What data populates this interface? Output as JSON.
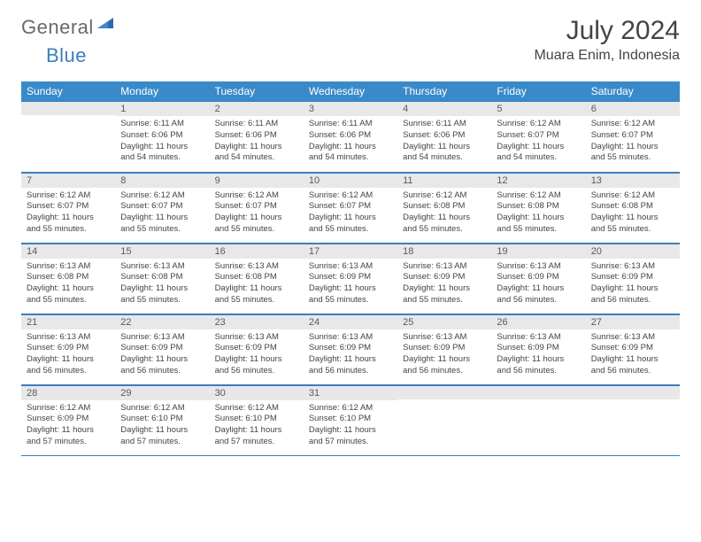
{
  "logo": {
    "text1": "General",
    "text2": "Blue"
  },
  "title": "July 2024",
  "location": "Muara Enim, Indonesia",
  "colors": {
    "header_bg": "#3a8ac9",
    "header_text": "#ffffff",
    "rule": "#3a7ebf",
    "daynum_bg": "#e8e8e8",
    "body_text": "#444444",
    "logo_gray": "#6a6a6a",
    "logo_blue": "#3a7ebf"
  },
  "weekdays": [
    "Sunday",
    "Monday",
    "Tuesday",
    "Wednesday",
    "Thursday",
    "Friday",
    "Saturday"
  ],
  "weeks": [
    [
      {
        "day": "",
        "sunrise": "",
        "sunset": "",
        "daylight": ""
      },
      {
        "day": "1",
        "sunrise": "Sunrise: 6:11 AM",
        "sunset": "Sunset: 6:06 PM",
        "daylight": "Daylight: 11 hours and 54 minutes."
      },
      {
        "day": "2",
        "sunrise": "Sunrise: 6:11 AM",
        "sunset": "Sunset: 6:06 PM",
        "daylight": "Daylight: 11 hours and 54 minutes."
      },
      {
        "day": "3",
        "sunrise": "Sunrise: 6:11 AM",
        "sunset": "Sunset: 6:06 PM",
        "daylight": "Daylight: 11 hours and 54 minutes."
      },
      {
        "day": "4",
        "sunrise": "Sunrise: 6:11 AM",
        "sunset": "Sunset: 6:06 PM",
        "daylight": "Daylight: 11 hours and 54 minutes."
      },
      {
        "day": "5",
        "sunrise": "Sunrise: 6:12 AM",
        "sunset": "Sunset: 6:07 PM",
        "daylight": "Daylight: 11 hours and 54 minutes."
      },
      {
        "day": "6",
        "sunrise": "Sunrise: 6:12 AM",
        "sunset": "Sunset: 6:07 PM",
        "daylight": "Daylight: 11 hours and 55 minutes."
      }
    ],
    [
      {
        "day": "7",
        "sunrise": "Sunrise: 6:12 AM",
        "sunset": "Sunset: 6:07 PM",
        "daylight": "Daylight: 11 hours and 55 minutes."
      },
      {
        "day": "8",
        "sunrise": "Sunrise: 6:12 AM",
        "sunset": "Sunset: 6:07 PM",
        "daylight": "Daylight: 11 hours and 55 minutes."
      },
      {
        "day": "9",
        "sunrise": "Sunrise: 6:12 AM",
        "sunset": "Sunset: 6:07 PM",
        "daylight": "Daylight: 11 hours and 55 minutes."
      },
      {
        "day": "10",
        "sunrise": "Sunrise: 6:12 AM",
        "sunset": "Sunset: 6:07 PM",
        "daylight": "Daylight: 11 hours and 55 minutes."
      },
      {
        "day": "11",
        "sunrise": "Sunrise: 6:12 AM",
        "sunset": "Sunset: 6:08 PM",
        "daylight": "Daylight: 11 hours and 55 minutes."
      },
      {
        "day": "12",
        "sunrise": "Sunrise: 6:12 AM",
        "sunset": "Sunset: 6:08 PM",
        "daylight": "Daylight: 11 hours and 55 minutes."
      },
      {
        "day": "13",
        "sunrise": "Sunrise: 6:12 AM",
        "sunset": "Sunset: 6:08 PM",
        "daylight": "Daylight: 11 hours and 55 minutes."
      }
    ],
    [
      {
        "day": "14",
        "sunrise": "Sunrise: 6:13 AM",
        "sunset": "Sunset: 6:08 PM",
        "daylight": "Daylight: 11 hours and 55 minutes."
      },
      {
        "day": "15",
        "sunrise": "Sunrise: 6:13 AM",
        "sunset": "Sunset: 6:08 PM",
        "daylight": "Daylight: 11 hours and 55 minutes."
      },
      {
        "day": "16",
        "sunrise": "Sunrise: 6:13 AM",
        "sunset": "Sunset: 6:08 PM",
        "daylight": "Daylight: 11 hours and 55 minutes."
      },
      {
        "day": "17",
        "sunrise": "Sunrise: 6:13 AM",
        "sunset": "Sunset: 6:09 PM",
        "daylight": "Daylight: 11 hours and 55 minutes."
      },
      {
        "day": "18",
        "sunrise": "Sunrise: 6:13 AM",
        "sunset": "Sunset: 6:09 PM",
        "daylight": "Daylight: 11 hours and 55 minutes."
      },
      {
        "day": "19",
        "sunrise": "Sunrise: 6:13 AM",
        "sunset": "Sunset: 6:09 PM",
        "daylight": "Daylight: 11 hours and 56 minutes."
      },
      {
        "day": "20",
        "sunrise": "Sunrise: 6:13 AM",
        "sunset": "Sunset: 6:09 PM",
        "daylight": "Daylight: 11 hours and 56 minutes."
      }
    ],
    [
      {
        "day": "21",
        "sunrise": "Sunrise: 6:13 AM",
        "sunset": "Sunset: 6:09 PM",
        "daylight": "Daylight: 11 hours and 56 minutes."
      },
      {
        "day": "22",
        "sunrise": "Sunrise: 6:13 AM",
        "sunset": "Sunset: 6:09 PM",
        "daylight": "Daylight: 11 hours and 56 minutes."
      },
      {
        "day": "23",
        "sunrise": "Sunrise: 6:13 AM",
        "sunset": "Sunset: 6:09 PM",
        "daylight": "Daylight: 11 hours and 56 minutes."
      },
      {
        "day": "24",
        "sunrise": "Sunrise: 6:13 AM",
        "sunset": "Sunset: 6:09 PM",
        "daylight": "Daylight: 11 hours and 56 minutes."
      },
      {
        "day": "25",
        "sunrise": "Sunrise: 6:13 AM",
        "sunset": "Sunset: 6:09 PM",
        "daylight": "Daylight: 11 hours and 56 minutes."
      },
      {
        "day": "26",
        "sunrise": "Sunrise: 6:13 AM",
        "sunset": "Sunset: 6:09 PM",
        "daylight": "Daylight: 11 hours and 56 minutes."
      },
      {
        "day": "27",
        "sunrise": "Sunrise: 6:13 AM",
        "sunset": "Sunset: 6:09 PM",
        "daylight": "Daylight: 11 hours and 56 minutes."
      }
    ],
    [
      {
        "day": "28",
        "sunrise": "Sunrise: 6:12 AM",
        "sunset": "Sunset: 6:09 PM",
        "daylight": "Daylight: 11 hours and 57 minutes."
      },
      {
        "day": "29",
        "sunrise": "Sunrise: 6:12 AM",
        "sunset": "Sunset: 6:10 PM",
        "daylight": "Daylight: 11 hours and 57 minutes."
      },
      {
        "day": "30",
        "sunrise": "Sunrise: 6:12 AM",
        "sunset": "Sunset: 6:10 PM",
        "daylight": "Daylight: 11 hours and 57 minutes."
      },
      {
        "day": "31",
        "sunrise": "Sunrise: 6:12 AM",
        "sunset": "Sunset: 6:10 PM",
        "daylight": "Daylight: 11 hours and 57 minutes."
      },
      {
        "day": "",
        "sunrise": "",
        "sunset": "",
        "daylight": ""
      },
      {
        "day": "",
        "sunrise": "",
        "sunset": "",
        "daylight": ""
      },
      {
        "day": "",
        "sunrise": "",
        "sunset": "",
        "daylight": ""
      }
    ]
  ]
}
